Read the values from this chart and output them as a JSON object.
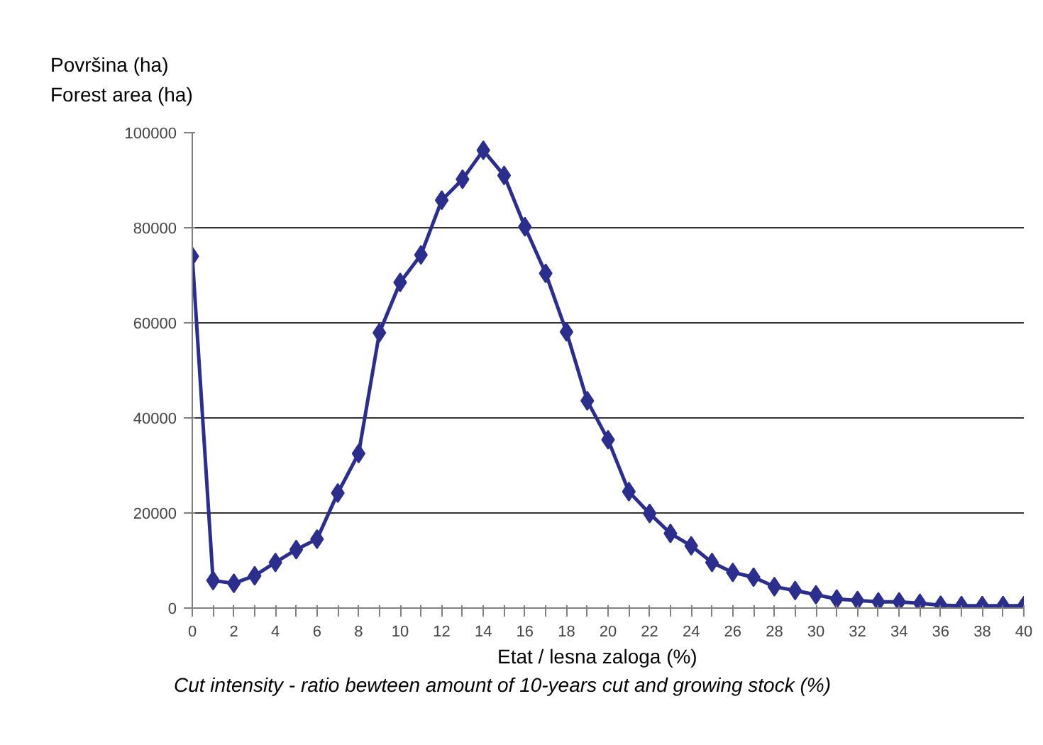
{
  "chart_data": {
    "type": "line",
    "xlabel": "Etat / lesna zaloga (%)\nCut intensity - ratio bewteen amount of 10-years cut and growing stock (%)",
    "ylabel": "Površina (ha)\nForest area (ha)",
    "x": [
      0,
      1,
      2,
      3,
      4,
      5,
      6,
      7,
      8,
      9,
      10,
      11,
      12,
      13,
      14,
      15,
      16,
      17,
      18,
      19,
      20,
      21,
      22,
      23,
      24,
      25,
      26,
      27,
      28,
      29,
      30,
      31,
      32,
      33,
      34,
      35,
      36,
      37,
      38,
      39,
      40
    ],
    "series": [
      {
        "color": "#2b2e8c",
        "values": [
          74000,
          5800,
          5200,
          6800,
          9600,
          12300,
          14500,
          24200,
          32500,
          57900,
          68500,
          74300,
          85800,
          90200,
          96300,
          91000,
          80200,
          70400,
          58100,
          43600,
          35400,
          24500,
          19900,
          15700,
          13100,
          9600,
          7500,
          6500,
          4500,
          3700,
          2800,
          1900,
          1600,
          1300,
          1300,
          1000,
          600,
          500,
          500,
          500,
          500
        ]
      }
    ],
    "xlim": [
      0,
      40
    ],
    "ylim": [
      0,
      100000
    ],
    "xticks": [
      0,
      {
        "value": 1,
        "label": null
      },
      2,
      {
        "value": 3,
        "label": null
      },
      4,
      {
        "value": 5,
        "label": null
      },
      6,
      {
        "value": 7,
        "label": null
      },
      8,
      {
        "value": 9,
        "label": null
      },
      10,
      {
        "value": 11,
        "label": null
      },
      12,
      {
        "value": 13,
        "label": null
      },
      14,
      {
        "value": 15,
        "label": null
      },
      16,
      {
        "value": 17,
        "label": null
      },
      18,
      {
        "value": 19,
        "label": null
      },
      20,
      {
        "value": 21,
        "label": null
      },
      22,
      {
        "value": 23,
        "label": null
      },
      24,
      {
        "value": 25,
        "label": null
      },
      26,
      {
        "value": 27,
        "label": null
      },
      28,
      {
        "value": 29,
        "label": null
      },
      30,
      {
        "value": 31,
        "label": null
      },
      32,
      {
        "value": 33,
        "label": null
      },
      34,
      {
        "value": 35,
        "label": null
      },
      36,
      {
        "value": 37,
        "label": null
      },
      38,
      {
        "value": 39,
        "label": null
      },
      40
    ],
    "yticks": [
      0,
      20000,
      40000,
      60000,
      80000,
      100000
    ],
    "grid": "y",
    "marker": "diamond",
    "line_style": "solid"
  }
}
